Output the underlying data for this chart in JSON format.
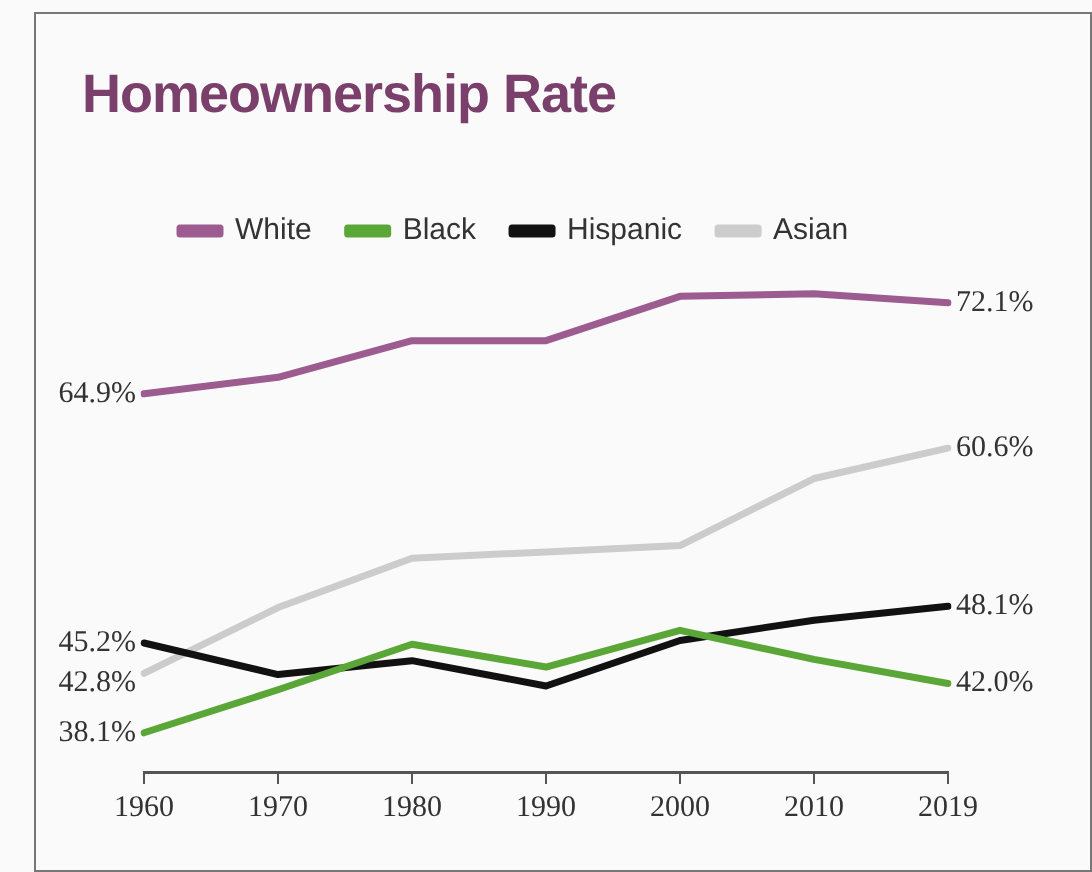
{
  "chart_data": {
    "type": "line",
    "title": "Homeownership Rate",
    "categories": [
      "1960",
      "1970",
      "1980",
      "1990",
      "2000",
      "2010",
      "2019"
    ],
    "series": [
      {
        "name": "White",
        "color": "#9c5c8f",
        "values": [
          64.9,
          66.2,
          69.1,
          69.1,
          72.6,
          72.8,
          72.1
        ],
        "value_labels": [
          "64.9%",
          null,
          null,
          null,
          null,
          null,
          "72.1%"
        ]
      },
      {
        "name": "Black",
        "color": "#5aa636",
        "values": [
          38.1,
          41.5,
          45.1,
          43.3,
          46.2,
          43.9,
          42.0
        ],
        "value_labels": [
          "38.1%",
          null,
          null,
          null,
          null,
          null,
          "42.0%"
        ]
      },
      {
        "name": "Hispanic",
        "color": "#111111",
        "values": [
          45.2,
          42.7,
          43.8,
          41.8,
          45.4,
          47.0,
          48.1
        ],
        "value_labels": [
          "45.2%",
          null,
          null,
          null,
          null,
          null,
          "48.1%"
        ]
      },
      {
        "name": "Asian",
        "color": "#cccccc",
        "values": [
          42.8,
          48.0,
          51.9,
          52.4,
          52.9,
          58.2,
          60.6
        ],
        "value_labels": [
          "42.8%",
          null,
          null,
          null,
          null,
          null,
          "60.6%"
        ]
      }
    ],
    "legend": "top left",
    "grid": false,
    "marker": "none",
    "line_style": "solid"
  }
}
